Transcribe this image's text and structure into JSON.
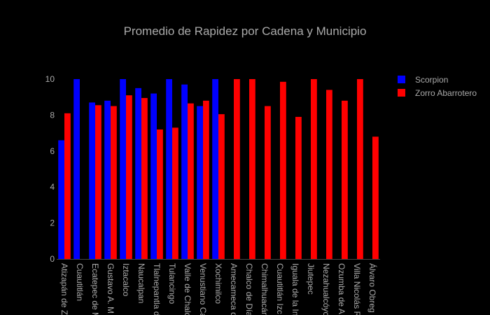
{
  "chart_data": {
    "type": "bar",
    "title": "Promedio de Rapidez por Cadena y Municipio",
    "xlabel": "",
    "ylabel": "",
    "ylim": [
      0,
      10
    ],
    "yticks": [
      0,
      2,
      4,
      6,
      8,
      10
    ],
    "grid": false,
    "legend_position": "top-right",
    "categories": [
      "Atizapán de Z",
      "Cuautitlán",
      "Ecatepec de M",
      "Gustavo A. M",
      "Iztacalco",
      "Naucalpan",
      "Tlalnepantla d",
      "Tulancingo",
      "Valle de Chalc",
      "Venustiano Ca",
      "Xochimilco",
      "Amecameca d",
      "Chalco de Día",
      "Chimalhuacán",
      "Cuautitlán Izc",
      "Iguala de la In",
      "Jiutepec",
      "Nezahualcóyo",
      "Ozumba de A",
      "Villa Nicolás R",
      "Álvaro Obreg"
    ],
    "series": [
      {
        "name": "Scorpion",
        "color": "#0000ff",
        "values": [
          6.6,
          10,
          8.7,
          8.8,
          10,
          9.5,
          9.2,
          10,
          9.7,
          8.5,
          10,
          null,
          null,
          null,
          null,
          null,
          null,
          null,
          null,
          null,
          null
        ]
      },
      {
        "name": "Zorro Abarrotero",
        "color": "#ff0000",
        "values": [
          8.1,
          null,
          8.55,
          8.5,
          9.1,
          8.95,
          7.2,
          7.3,
          8.65,
          8.8,
          8.05,
          10,
          10,
          8.5,
          9.85,
          7.9,
          10,
          9.4,
          8.8,
          10,
          6.8
        ]
      }
    ]
  }
}
